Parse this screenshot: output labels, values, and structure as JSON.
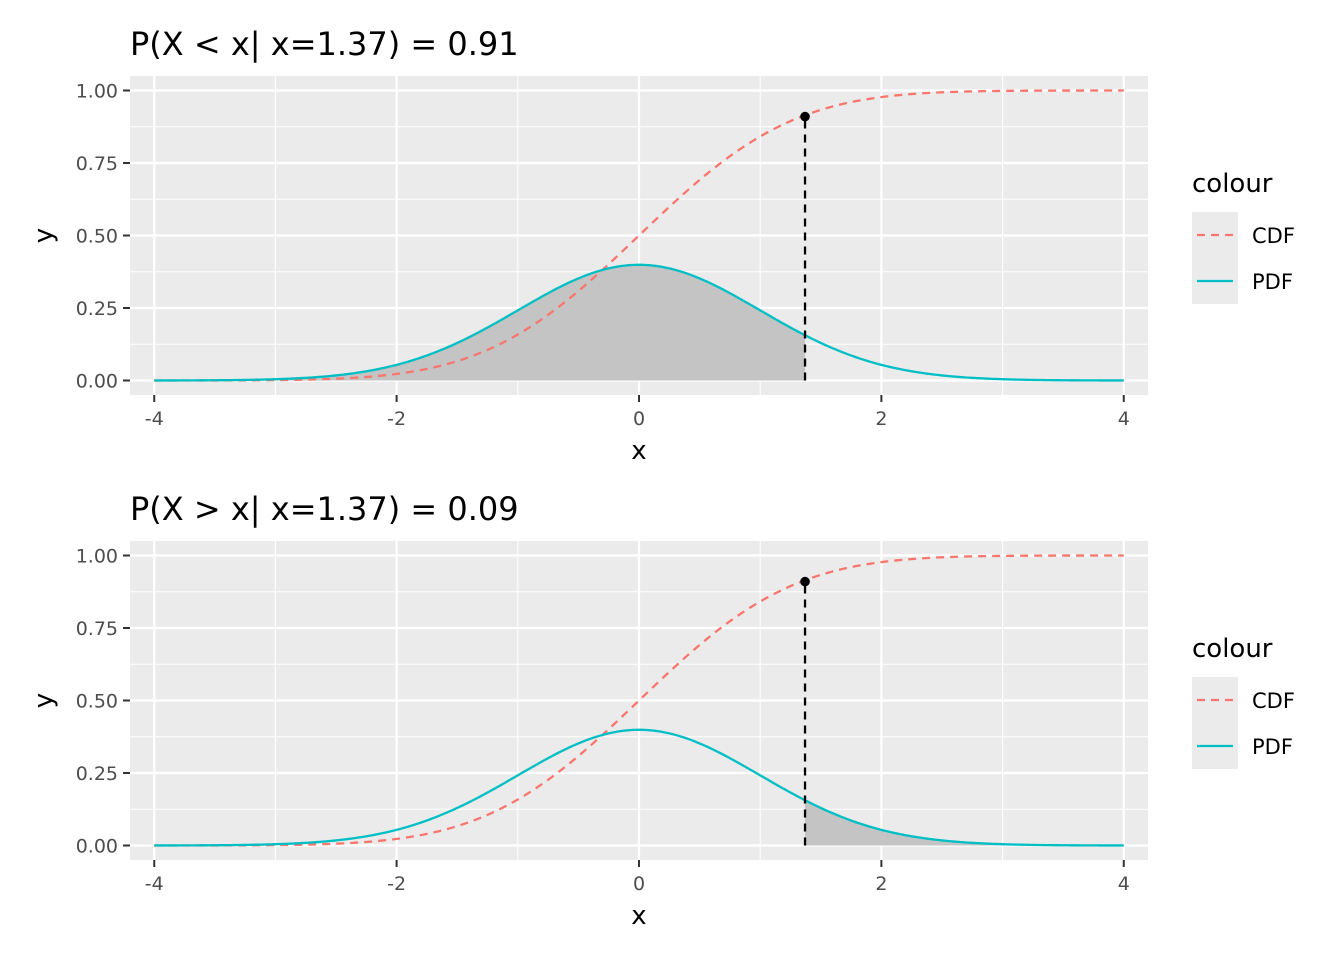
{
  "chart_data": [
    {
      "type": "line",
      "title": "P(X < x| x=1.37) = 0.91",
      "xlabel": "x",
      "ylabel": "y",
      "xlim": [
        -4.2,
        4.2
      ],
      "ylim": [
        -0.05,
        1.05
      ],
      "x_ticks": [
        -4,
        -2,
        0,
        2,
        4
      ],
      "x_tick_labels": [
        "-4",
        "-2",
        "0",
        "2",
        "4"
      ],
      "y_ticks": [
        0,
        0.25,
        0.5,
        0.75,
        1
      ],
      "y_tick_labels": [
        "0.00",
        "0.25",
        "0.50",
        "0.75",
        "1.00"
      ],
      "grid": true,
      "legend": {
        "title": "colour",
        "position": "right"
      },
      "series": [
        {
          "name": "CDF",
          "line_style": "dashed",
          "color": "#F8766D",
          "x": [
            -4,
            -3,
            -2,
            -1.5,
            -1,
            -0.5,
            0,
            0.5,
            1,
            1.5,
            2,
            3,
            4
          ],
          "values": [
            0,
            0.001,
            0.023,
            0.067,
            0.159,
            0.309,
            0.5,
            0.691,
            0.841,
            0.933,
            0.977,
            0.999,
            1
          ]
        },
        {
          "name": "PDF",
          "line_style": "solid",
          "color": "#00BFC4",
          "x": [
            -4,
            -3,
            -2,
            -1.5,
            -1,
            -0.5,
            0,
            0.5,
            1,
            1.5,
            2,
            3,
            4
          ],
          "values": [
            0.0001,
            0.004,
            0.054,
            0.13,
            0.242,
            0.352,
            0.399,
            0.352,
            0.242,
            0.13,
            0.054,
            0.004,
            0.0001
          ]
        }
      ],
      "threshold_x": 1.37,
      "threshold_cdf": 0.91,
      "shaded_region": "left",
      "shade_color": "#C4C4C4"
    },
    {
      "type": "line",
      "title": "P(X > x| x=1.37) = 0.09",
      "xlabel": "x",
      "ylabel": "y",
      "xlim": [
        -4.2,
        4.2
      ],
      "ylim": [
        -0.05,
        1.05
      ],
      "x_ticks": [
        -4,
        -2,
        0,
        2,
        4
      ],
      "x_tick_labels": [
        "-4",
        "-2",
        "0",
        "2",
        "4"
      ],
      "y_ticks": [
        0,
        0.25,
        0.5,
        0.75,
        1
      ],
      "y_tick_labels": [
        "0.00",
        "0.25",
        "0.50",
        "0.75",
        "1.00"
      ],
      "grid": true,
      "legend": {
        "title": "colour",
        "position": "right"
      },
      "series": [
        {
          "name": "CDF",
          "line_style": "dashed",
          "color": "#F8766D",
          "x": [
            -4,
            -3,
            -2,
            -1.5,
            -1,
            -0.5,
            0,
            0.5,
            1,
            1.5,
            2,
            3,
            4
          ],
          "values": [
            0,
            0.001,
            0.023,
            0.067,
            0.159,
            0.309,
            0.5,
            0.691,
            0.841,
            0.933,
            0.977,
            0.999,
            1
          ]
        },
        {
          "name": "PDF",
          "line_style": "solid",
          "color": "#00BFC4",
          "x": [
            -4,
            -3,
            -2,
            -1.5,
            -1,
            -0.5,
            0,
            0.5,
            1,
            1.5,
            2,
            3,
            4
          ],
          "values": [
            0.0001,
            0.004,
            0.054,
            0.13,
            0.242,
            0.352,
            0.399,
            0.352,
            0.242,
            0.13,
            0.054,
            0.004,
            0.0001
          ]
        }
      ],
      "threshold_x": 1.37,
      "threshold_cdf": 0.91,
      "shaded_region": "right",
      "shade_color": "#C4C4C4"
    }
  ],
  "colors": {
    "panel_background": "#EBEBEB",
    "grid_line": "#FFFFFF",
    "cdf": "#F8766D",
    "pdf": "#00BFC4",
    "marker": "#000000"
  }
}
